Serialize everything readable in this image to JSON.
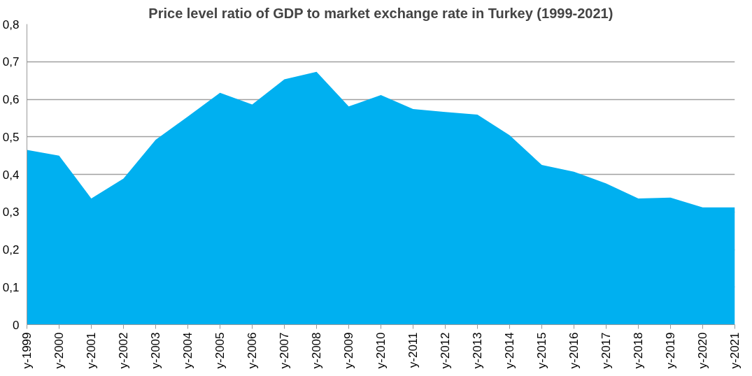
{
  "chart_data": {
    "type": "area",
    "title": "Price level ratio of GDP to market exchange rate in Turkey (1999-2021)",
    "categories": [
      "y-1999",
      "y-2000",
      "y-2001",
      "y-2002",
      "y-2003",
      "y-2004",
      "y-2005",
      "y-2006",
      "y-2007",
      "y-2008",
      "y-2009",
      "y-2010",
      "y-2011",
      "y-2012",
      "y-2013",
      "y-2014",
      "y-2015",
      "y-2016",
      "y-2017",
      "y-2018",
      "y-2019",
      "y-2020",
      "y-2021"
    ],
    "series": [
      {
        "color": "#00b0f0",
        "values": [
          0.465,
          0.45,
          0.336,
          0.389,
          0.492,
          0.554,
          0.617,
          0.586,
          0.653,
          0.673,
          0.581,
          0.611,
          0.574,
          0.566,
          0.559,
          0.504,
          0.425,
          0.407,
          0.376,
          0.336,
          0.338,
          0.312,
          0.312
        ]
      }
    ],
    "ylim": [
      0,
      0.8
    ],
    "yticks": [
      {
        "value": 0,
        "label": "0"
      },
      {
        "value": 0.1,
        "label": "0,1"
      },
      {
        "value": 0.2,
        "label": "0,2"
      },
      {
        "value": 0.3,
        "label": "0,3"
      },
      {
        "value": 0.4,
        "label": "0,4"
      },
      {
        "value": 0.5,
        "label": "0,5"
      },
      {
        "value": 0.6,
        "label": "0,6"
      },
      {
        "value": 0.7,
        "label": "0,7"
      },
      {
        "value": 0.8,
        "label": "0,8"
      }
    ],
    "grid": "y"
  }
}
